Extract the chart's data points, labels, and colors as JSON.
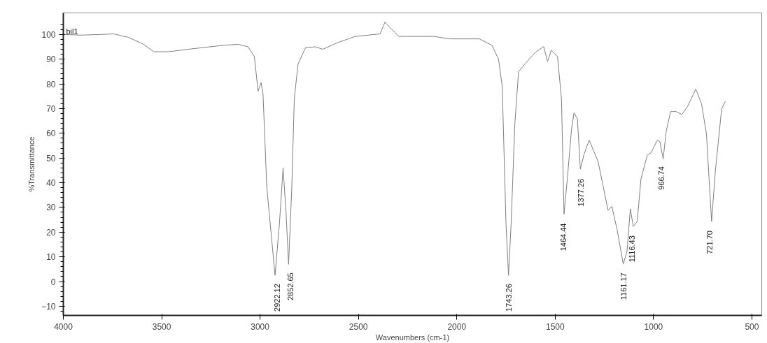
{
  "chart_data": {
    "type": "line",
    "xlabel": "Wavenumbers (cm-1)",
    "ylabel": "%Transmittance",
    "xlim": [
      4000,
      450
    ],
    "xticks": [
      4000,
      3500,
      3000,
      2500,
      2000,
      1500,
      1000,
      500
    ],
    "ylim": [
      -13.7,
      108.7
    ],
    "yticks": [
      -10,
      0,
      10,
      20,
      30,
      40,
      50,
      60,
      70,
      80,
      90,
      100
    ],
    "grid": false,
    "marker": "none",
    "line_style": "solid",
    "series": [
      {
        "color": "#7f7f7f",
        "x": [
          4000,
          3909,
          3744,
          3668,
          3592,
          3541,
          3466,
          3365,
          3187,
          3111,
          3061,
          3029,
          3010,
          2995,
          2985,
          2966,
          2924,
          2902,
          2883,
          2868,
          2855,
          2839,
          2826,
          2807,
          2769,
          2719,
          2681,
          2605,
          2516,
          2390,
          2365,
          2345,
          2295,
          2115,
          2038,
          1885,
          1821,
          1788,
          1769,
          1750,
          1737,
          1724,
          1705,
          1686,
          1654,
          1603,
          1558,
          1539,
          1520,
          1488,
          1468,
          1455,
          1436,
          1417,
          1404,
          1387,
          1372,
          1353,
          1327,
          1282,
          1231,
          1212,
          1186,
          1154,
          1135,
          1118,
          1103,
          1083,
          1064,
          1032,
          1013,
          981,
          968,
          951,
          936,
          913,
          885,
          856,
          827,
          785,
          756,
          731,
          705,
          686,
          654,
          635
        ],
        "values": [
          100,
          99.7,
          100.2,
          98.8,
          96,
          93,
          93,
          94,
          95.6,
          96,
          95,
          91,
          77,
          80.5,
          76,
          38.5,
          2.5,
          23,
          46,
          28,
          7,
          37.5,
          74,
          88,
          94.6,
          95,
          94,
          96.7,
          99.2,
          100.2,
          105,
          103.2,
          99.2,
          99.2,
          98.2,
          98.2,
          95.6,
          90,
          79,
          23.3,
          2.5,
          23.3,
          63.8,
          85,
          88,
          92.6,
          95.1,
          89,
          93.6,
          91,
          73.9,
          27.3,
          43.5,
          61.7,
          68.3,
          65.8,
          45.5,
          51.6,
          57.2,
          48.6,
          28.8,
          30.4,
          21.3,
          7.1,
          12.1,
          29.4,
          22.3,
          24.3,
          41.5,
          51.1,
          52.1,
          57.2,
          56.7,
          49.6,
          60.7,
          68.8,
          68.8,
          67.6,
          70.9,
          77.9,
          71.9,
          59.7,
          24.3,
          44.5,
          69.8,
          72.9
        ]
      }
    ],
    "annotations": [
      "bil1",
      {
        "text": "2922.12",
        "x": 2922.12,
        "y": 2.5
      },
      {
        "text": "2852.65",
        "x": 2852.65,
        "y": 7
      },
      {
        "text": "1743.26",
        "x": 1743.26,
        "y": 2.5
      },
      {
        "text": "1464.44",
        "x": 1464.44,
        "y": 27
      },
      {
        "text": "1377.26",
        "x": 1377.26,
        "y": 45
      },
      {
        "text": "1161.17",
        "x": 1161.17,
        "y": 7
      },
      {
        "text": "1116.43",
        "x": 1116.43,
        "y": 22
      },
      {
        "text": "966.74",
        "x": 966.74,
        "y": 50
      },
      {
        "text": "721.70",
        "x": 721.7,
        "y": 24
      }
    ]
  }
}
